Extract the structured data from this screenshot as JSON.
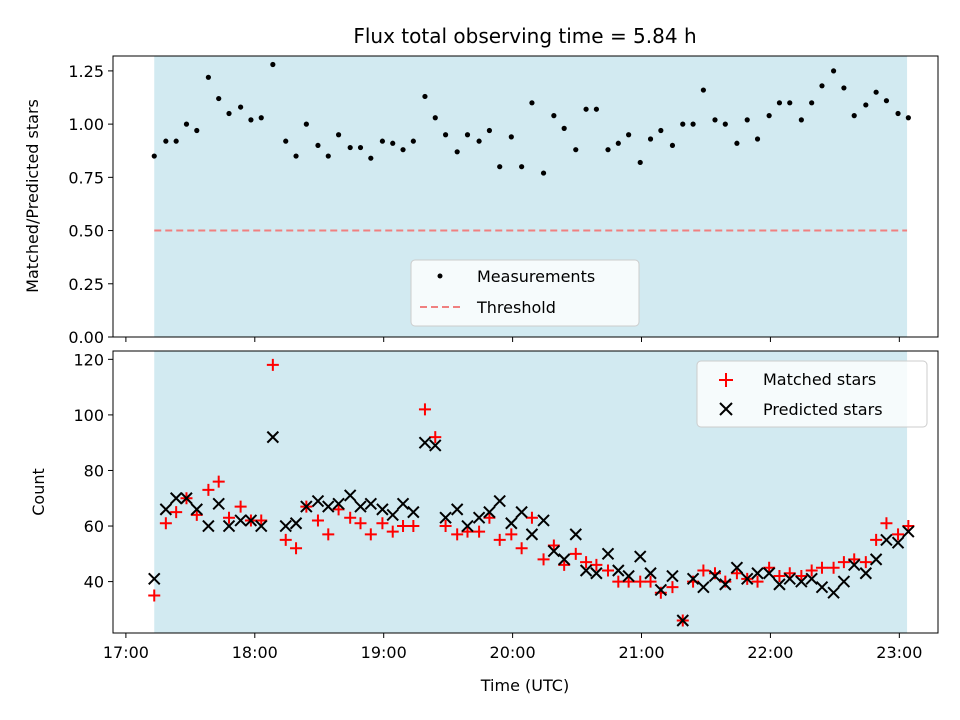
{
  "chart_data": {
    "title": "Flux total observing time = 5.84 h",
    "xlabel": "Time (UTC)",
    "xlim": [
      16.9,
      23.3
    ],
    "x_ticks": [
      {
        "value": 17,
        "label": "17:00"
      },
      {
        "value": 18,
        "label": "18:00"
      },
      {
        "value": 19,
        "label": "19:00"
      },
      {
        "value": 20,
        "label": "20:00"
      },
      {
        "value": 21,
        "label": "21:00"
      },
      {
        "value": 22,
        "label": "22:00"
      },
      {
        "value": 23,
        "label": "23:00"
      }
    ],
    "observing_window": [
      17.22,
      23.06
    ],
    "colors": {
      "window": "#add8e6",
      "matched": "#ff0000",
      "predicted": "#000000",
      "threshold": "#f08080"
    },
    "panels": [
      {
        "type": "scatter",
        "ylabel": "Matched/Predicted stars",
        "ylim": [
          0,
          1.32
        ],
        "y_ticks": [
          "0.00",
          "0.25",
          "0.50",
          "0.75",
          "1.00",
          "1.25"
        ],
        "legend_position": "lower-center",
        "threshold": {
          "name": "Threshold",
          "value": 0.5
        },
        "series": [
          {
            "name": "Measurements",
            "marker": "dot",
            "points": [
              [
                17.22,
                0.85
              ],
              [
                17.31,
                0.92
              ],
              [
                17.39,
                0.92
              ],
              [
                17.47,
                1.0
              ],
              [
                17.55,
                0.97
              ],
              [
                17.64,
                1.22
              ],
              [
                17.72,
                1.12
              ],
              [
                17.8,
                1.05
              ],
              [
                17.89,
                1.08
              ],
              [
                17.97,
                1.02
              ],
              [
                18.05,
                1.03
              ],
              [
                18.14,
                1.28
              ],
              [
                18.24,
                0.92
              ],
              [
                18.32,
                0.85
              ],
              [
                18.4,
                1.0
              ],
              [
                18.49,
                0.9
              ],
              [
                18.57,
                0.85
              ],
              [
                18.65,
                0.95
              ],
              [
                18.74,
                0.89
              ],
              [
                18.82,
                0.89
              ],
              [
                18.9,
                0.84
              ],
              [
                18.99,
                0.92
              ],
              [
                19.07,
                0.91
              ],
              [
                19.15,
                0.88
              ],
              [
                19.23,
                0.92
              ],
              [
                19.32,
                1.13
              ],
              [
                19.4,
                1.03
              ],
              [
                19.48,
                0.95
              ],
              [
                19.57,
                0.87
              ],
              [
                19.65,
                0.95
              ],
              [
                19.74,
                0.92
              ],
              [
                19.82,
                0.97
              ],
              [
                19.9,
                0.8
              ],
              [
                19.99,
                0.94
              ],
              [
                20.07,
                0.8
              ],
              [
                20.15,
                1.1
              ],
              [
                20.24,
                0.77
              ],
              [
                20.32,
                1.04
              ],
              [
                20.4,
                0.98
              ],
              [
                20.49,
                0.88
              ],
              [
                20.57,
                1.07
              ],
              [
                20.65,
                1.07
              ],
              [
                20.74,
                0.88
              ],
              [
                20.82,
                0.91
              ],
              [
                20.9,
                0.95
              ],
              [
                20.99,
                0.82
              ],
              [
                21.07,
                0.93
              ],
              [
                21.15,
                0.97
              ],
              [
                21.24,
                0.9
              ],
              [
                21.32,
                1.0
              ],
              [
                21.4,
                1.0
              ],
              [
                21.48,
                1.16
              ],
              [
                21.57,
                1.02
              ],
              [
                21.65,
                1.0
              ],
              [
                21.74,
                0.91
              ],
              [
                21.82,
                1.02
              ],
              [
                21.9,
                0.93
              ],
              [
                21.99,
                1.04
              ],
              [
                22.07,
                1.1
              ],
              [
                22.15,
                1.1
              ],
              [
                22.24,
                1.02
              ],
              [
                22.32,
                1.1
              ],
              [
                22.4,
                1.18
              ],
              [
                22.49,
                1.25
              ],
              [
                22.57,
                1.17
              ],
              [
                22.65,
                1.04
              ],
              [
                22.74,
                1.09
              ],
              [
                22.82,
                1.15
              ],
              [
                22.9,
                1.11
              ],
              [
                22.99,
                1.05
              ],
              [
                23.07,
                1.03
              ]
            ]
          }
        ]
      },
      {
        "type": "scatter",
        "ylabel": "Count",
        "ylim": [
          21.5,
          123
        ],
        "y_ticks": [
          "40",
          "60",
          "80",
          "100",
          "120"
        ],
        "legend_position": "upper-right",
        "series": [
          {
            "name": "Matched stars",
            "marker": "plus",
            "points": [
              [
                17.22,
                35
              ],
              [
                17.31,
                61
              ],
              [
                17.39,
                65
              ],
              [
                17.47,
                70
              ],
              [
                17.55,
                64
              ],
              [
                17.64,
                73
              ],
              [
                17.72,
                76
              ],
              [
                17.8,
                63
              ],
              [
                17.89,
                67
              ],
              [
                17.97,
                62
              ],
              [
                18.05,
                62
              ],
              [
                18.14,
                118
              ],
              [
                18.24,
                55
              ],
              [
                18.32,
                52
              ],
              [
                18.4,
                67
              ],
              [
                18.49,
                62
              ],
              [
                18.57,
                57
              ],
              [
                18.65,
                66
              ],
              [
                18.74,
                63
              ],
              [
                18.82,
                61
              ],
              [
                18.9,
                57
              ],
              [
                18.99,
                61
              ],
              [
                19.07,
                58
              ],
              [
                19.15,
                60
              ],
              [
                19.23,
                60
              ],
              [
                19.32,
                102
              ],
              [
                19.4,
                92
              ],
              [
                19.48,
                60
              ],
              [
                19.57,
                57
              ],
              [
                19.65,
                58
              ],
              [
                19.74,
                58
              ],
              [
                19.82,
                63
              ],
              [
                19.9,
                55
              ],
              [
                19.99,
                57
              ],
              [
                20.07,
                52
              ],
              [
                20.15,
                63
              ],
              [
                20.24,
                48
              ],
              [
                20.32,
                53
              ],
              [
                20.4,
                46
              ],
              [
                20.49,
                50
              ],
              [
                20.57,
                47
              ],
              [
                20.65,
                46
              ],
              [
                20.74,
                44
              ],
              [
                20.82,
                40
              ],
              [
                20.9,
                40
              ],
              [
                20.99,
                40
              ],
              [
                21.07,
                40
              ],
              [
                21.15,
                36
              ],
              [
                21.24,
                38
              ],
              [
                21.32,
                26
              ],
              [
                21.4,
                40
              ],
              [
                21.48,
                44
              ],
              [
                21.57,
                43
              ],
              [
                21.65,
                40
              ],
              [
                21.74,
                43
              ],
              [
                21.82,
                41
              ],
              [
                21.9,
                40
              ],
              [
                21.99,
                45
              ],
              [
                22.07,
                42
              ],
              [
                22.15,
                43
              ],
              [
                22.24,
                42
              ],
              [
                22.32,
                44
              ],
              [
                22.4,
                45
              ],
              [
                22.49,
                45
              ],
              [
                22.57,
                47
              ],
              [
                22.65,
                48
              ],
              [
                22.74,
                47
              ],
              [
                22.82,
                55
              ],
              [
                22.9,
                61
              ],
              [
                22.99,
                57
              ],
              [
                23.07,
                60
              ]
            ]
          },
          {
            "name": "Predicted stars",
            "marker": "x",
            "points": [
              [
                17.22,
                41
              ],
              [
                17.31,
                66
              ],
              [
                17.39,
                70
              ],
              [
                17.47,
                70
              ],
              [
                17.55,
                66
              ],
              [
                17.64,
                60
              ],
              [
                17.72,
                68
              ],
              [
                17.8,
                60
              ],
              [
                17.89,
                62
              ],
              [
                17.97,
                62
              ],
              [
                18.05,
                60
              ],
              [
                18.14,
                92
              ],
              [
                18.24,
                60
              ],
              [
                18.32,
                61
              ],
              [
                18.4,
                67
              ],
              [
                18.49,
                69
              ],
              [
                18.57,
                67
              ],
              [
                18.65,
                68
              ],
              [
                18.74,
                71
              ],
              [
                18.82,
                67
              ],
              [
                18.9,
                68
              ],
              [
                18.99,
                66
              ],
              [
                19.07,
                64
              ],
              [
                19.15,
                68
              ],
              [
                19.23,
                65
              ],
              [
                19.32,
                90
              ],
              [
                19.4,
                89
              ],
              [
                19.48,
                63
              ],
              [
                19.57,
                66
              ],
              [
                19.65,
                60
              ],
              [
                19.74,
                63
              ],
              [
                19.82,
                65
              ],
              [
                19.9,
                69
              ],
              [
                19.99,
                61
              ],
              [
                20.07,
                65
              ],
              [
                20.15,
                57
              ],
              [
                20.24,
                62
              ],
              [
                20.32,
                51
              ],
              [
                20.4,
                48
              ],
              [
                20.49,
                57
              ],
              [
                20.57,
                44
              ],
              [
                20.65,
                43
              ],
              [
                20.74,
                50
              ],
              [
                20.82,
                44
              ],
              [
                20.9,
                42
              ],
              [
                20.99,
                49
              ],
              [
                21.07,
                43
              ],
              [
                21.15,
                37
              ],
              [
                21.24,
                42
              ],
              [
                21.32,
                26
              ],
              [
                21.4,
                41
              ],
              [
                21.48,
                38
              ],
              [
                21.57,
                42
              ],
              [
                21.65,
                39
              ],
              [
                21.74,
                45
              ],
              [
                21.82,
                41
              ],
              [
                21.9,
                43
              ],
              [
                21.99,
                43
              ],
              [
                22.07,
                39
              ],
              [
                22.15,
                41
              ],
              [
                22.24,
                40
              ],
              [
                22.32,
                41
              ],
              [
                22.4,
                38
              ],
              [
                22.49,
                36
              ],
              [
                22.57,
                40
              ],
              [
                22.65,
                46
              ],
              [
                22.74,
                43
              ],
              [
                22.82,
                48
              ],
              [
                22.9,
                55
              ],
              [
                22.99,
                54
              ],
              [
                23.07,
                58
              ]
            ]
          }
        ]
      }
    ]
  }
}
